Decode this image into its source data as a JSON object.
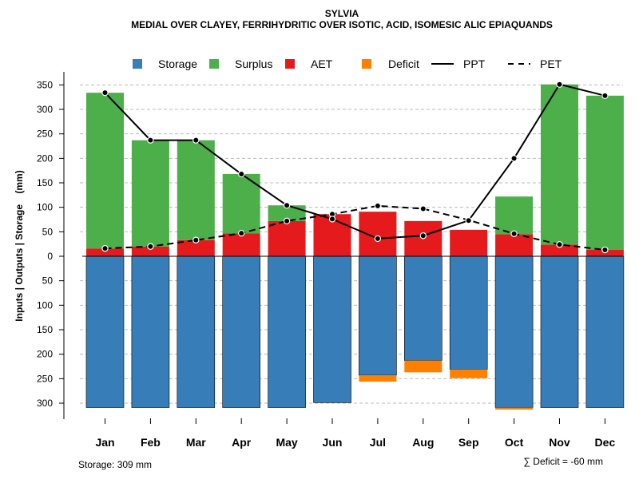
{
  "chart_data": {
    "type": "bar",
    "title": "SYLVIA",
    "subtitle": "MEDIAL OVER CLAYEY, FERRIHYDRITIC OVER ISOTIC, ACID, ISOMESIC ALIC EPIAQUANDS",
    "ylabel": "Inputs | Outputs | Storage    (mm)",
    "xlabel": "",
    "ylim": [
      -310,
      360
    ],
    "y_ticks": [
      350,
      300,
      250,
      200,
      150,
      100,
      50,
      0,
      -50,
      -100,
      -150,
      -200,
      -250,
      -300
    ],
    "y_tick_labels": [
      "350",
      "300",
      "250",
      "200",
      "150",
      "100",
      "50",
      "0",
      "50",
      "100",
      "150",
      "200",
      "250",
      "300"
    ],
    "categories": [
      "Jan",
      "Feb",
      "Mar",
      "Apr",
      "May",
      "Jun",
      "Jul",
      "Aug",
      "Sep",
      "Oct",
      "Nov",
      "Dec"
    ],
    "legend": [
      "Storage",
      "Surplus",
      "AET",
      "Deficit",
      "PPT",
      "PET"
    ],
    "legend_position": "top",
    "colors": {
      "storage": "#377EB8",
      "surplus": "#4DAF4A",
      "aet": "#E41A1C",
      "deficit": "#FF7F00",
      "line": "#000000",
      "grid": "#bbbbbb"
    },
    "series": [
      {
        "name": "AET",
        "values": [
          16,
          20,
          33,
          47,
          72,
          86,
          91,
          72,
          54,
          45,
          24,
          13
        ]
      },
      {
        "name": "Surplus",
        "values": [
          318,
          217,
          204,
          121,
          32,
          0,
          0,
          0,
          0,
          77,
          327,
          315
        ]
      },
      {
        "name": "Storage",
        "values": [
          309,
          309,
          309,
          309,
          309,
          299,
          243,
          213,
          231,
          309,
          309,
          309
        ]
      },
      {
        "name": "Deficit",
        "values": [
          0,
          0,
          0,
          0,
          0,
          0,
          13,
          24,
          18,
          4,
          0,
          0
        ]
      },
      {
        "name": "PPT",
        "values": [
          334,
          237,
          237,
          168,
          104,
          76,
          36,
          42,
          73,
          200,
          351,
          328
        ]
      },
      {
        "name": "PET",
        "values": [
          16,
          20,
          33,
          47,
          72,
          86,
          103,
          97,
          74,
          46,
          24,
          13
        ]
      }
    ],
    "footer_left": "Storage: 309 mm",
    "footer_right": "∑ Deficit = -60 mm"
  }
}
